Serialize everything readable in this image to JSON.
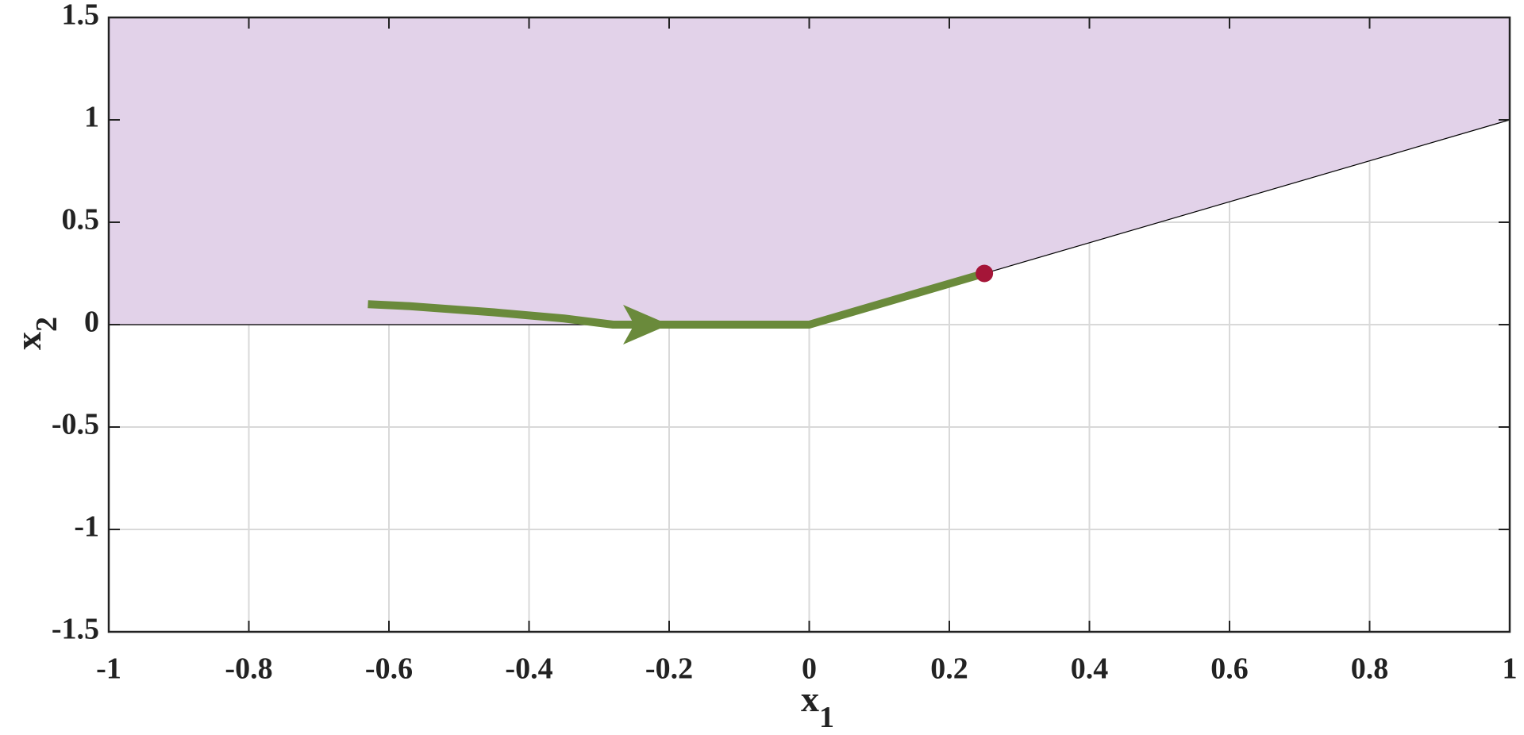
{
  "chart_data": {
    "type": "line",
    "xlabel": "x",
    "xlabel_subscript": "1",
    "ylabel": "x",
    "ylabel_subscript": "2",
    "xlim": [
      -1,
      1
    ],
    "ylim": [
      -1.5,
      1.5
    ],
    "xticks": [
      -1,
      -0.8,
      -0.6,
      -0.4,
      -0.2,
      0,
      0.2,
      0.4,
      0.6,
      0.8,
      1
    ],
    "yticks": [
      -1.5,
      -1,
      -0.5,
      0,
      0.5,
      1,
      1.5
    ],
    "grid": true,
    "grid_color": "#d9d9d9",
    "series": [
      {
        "style": "region-above",
        "color": "#e2d2e9",
        "edge_color": "#000000",
        "x": [
          -1,
          0,
          1
        ],
        "values": [
          0,
          0,
          1
        ]
      },
      {
        "style": "line",
        "color": "#6a8a3b",
        "x": [
          -0.63,
          -0.57,
          -0.45,
          -0.35,
          -0.28,
          -0.2,
          0,
          0.25
        ],
        "values": [
          0.1,
          0.09,
          0.06,
          0.03,
          0,
          0,
          0,
          0.25
        ]
      },
      {
        "style": "arrow",
        "color": "#6a8a3b",
        "x": [
          -0.2
        ],
        "values": [
          0
        ]
      },
      {
        "style": "point",
        "color": "#a51538",
        "x": [
          0.25
        ],
        "values": [
          0.25
        ]
      }
    ]
  }
}
